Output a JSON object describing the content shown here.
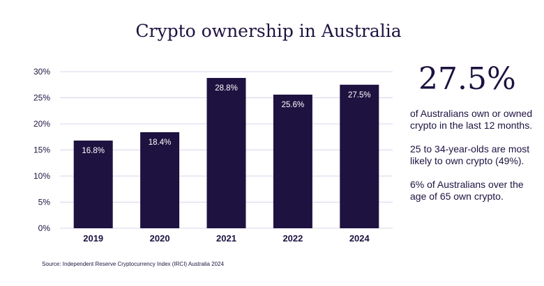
{
  "title": "Crypto ownership in Australia",
  "highlight": {
    "value": "27.5%",
    "notes": [
      "of Australians own or owned crypto in the last 12 months.",
      "25 to 34-year-olds are most likely to own crypto (49%).",
      "6% of Australians over the age of 65 own crypto."
    ]
  },
  "source": "Source: Independent Reserve Cryptocurrency Index (IRCI) Australia 2024",
  "colors": {
    "bar": "#1e1240",
    "grid": "#d8d4ea",
    "text": "#1e1240"
  },
  "chart_data": {
    "type": "bar",
    "categories": [
      "2019",
      "2020",
      "2021",
      "2022",
      "2024"
    ],
    "values": [
      16.8,
      18.4,
      28.8,
      25.6,
      27.5
    ],
    "data_labels": [
      "16.8%",
      "18.4%",
      "28.8%",
      "25.6%",
      "27.5%"
    ],
    "ylim": [
      0,
      30
    ],
    "yticks": [
      0,
      5,
      10,
      15,
      20,
      25,
      30
    ],
    "ytick_labels": [
      "0%",
      "5%",
      "10%",
      "15%",
      "20%",
      "25%",
      "30%"
    ],
    "grid": true,
    "xlabel": "",
    "ylabel": ""
  }
}
